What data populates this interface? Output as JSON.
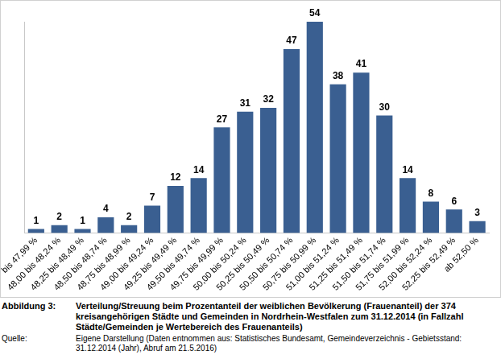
{
  "chart_data": {
    "type": "bar",
    "categories": [
      "bis 47,99 %",
      "48,00 bis 48,24 %",
      "48,25 bis 48,49 %",
      "48,50 bis 48,74 %",
      "48,75 bis 48,99 %",
      "49,00 bis 49,24 %",
      "49,25 bis 49,49 %",
      "49,50 bis 49,74 %",
      "49,75 bis 49,99 %",
      "50,00 bis 50,24 %",
      "50,25 bis 50,49 %",
      "50,50 bis 50,74 %",
      "50,75 bis 50,99 %",
      "51,00 bis 51,24 %",
      "51,25 bis 51,49 %",
      "51,50 bis 51,74 %",
      "51,75 bis 51,99 %",
      "52,00 bis 52,24 %",
      "52,25 bis 52,49 %",
      "ab 52,50 %"
    ],
    "values": [
      1,
      2,
      1,
      4,
      2,
      7,
      12,
      14,
      27,
      31,
      32,
      47,
      54,
      38,
      41,
      30,
      14,
      8,
      6,
      3
    ],
    "color": "#3a5f91",
    "ylim": [
      0,
      54
    ],
    "grid": false,
    "data_labels": true,
    "tick_labels": "x"
  },
  "caption": {
    "label": "Abbildung 3:",
    "text": "Verteilung/Streuung beim Prozentanteil der weiblichen Bevölkerung (Frauenanteil) der 374 kreisangehörigen Städte und Gemeinden in Nordrhein-Westfalen zum 31.12.2014 (in Fallzahl Städte/Gemeinden je Wertebereich des Frauenanteils)"
  },
  "source": {
    "label": "Quelle:",
    "text": "Eigene Darstellung (Daten entnommen aus: Statistisches Bundesamt, Gemeindeverzeichnis - Gebietsstand: 31.12.2014 (Jahr), Abruf am 21.5.2016)"
  }
}
